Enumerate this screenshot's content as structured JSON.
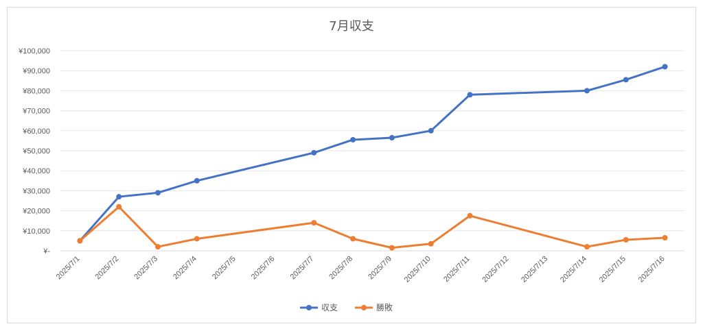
{
  "chart_data": {
    "type": "line",
    "title": "7月収支",
    "x": [
      "2025/7/1",
      "2025/7/2",
      "2025/7/3",
      "2025/7/4",
      "2025/7/5",
      "2025/7/6",
      "2025/7/7",
      "2025/7/8",
      "2025/7/9",
      "2025/7/10",
      "2025/7/11",
      "2025/7/12",
      "2025/7/13",
      "2025/7/14",
      "2025/7/15",
      "2025/7/16"
    ],
    "ytick_labels": [
      "¥-",
      "¥10,000",
      "¥20,000",
      "¥30,000",
      "¥40,000",
      "¥50,000",
      "¥60,000",
      "¥70,000",
      "¥80,000",
      "¥90,000",
      "¥100,000"
    ],
    "ylim": [
      0,
      100000
    ],
    "grid": true,
    "legend_position": "bottom",
    "series": [
      {
        "name": "収支",
        "color": "#4472C4",
        "values": [
          5000,
          27000,
          29000,
          35000,
          null,
          null,
          49000,
          55500,
          56500,
          60000,
          78000,
          null,
          null,
          80000,
          85500,
          92000
        ]
      },
      {
        "name": "勝敗",
        "color": "#ED7D31",
        "values": [
          5000,
          22000,
          2000,
          6000,
          null,
          null,
          14000,
          6000,
          1500,
          3500,
          17500,
          null,
          null,
          2000,
          5500,
          6500
        ]
      }
    ]
  }
}
